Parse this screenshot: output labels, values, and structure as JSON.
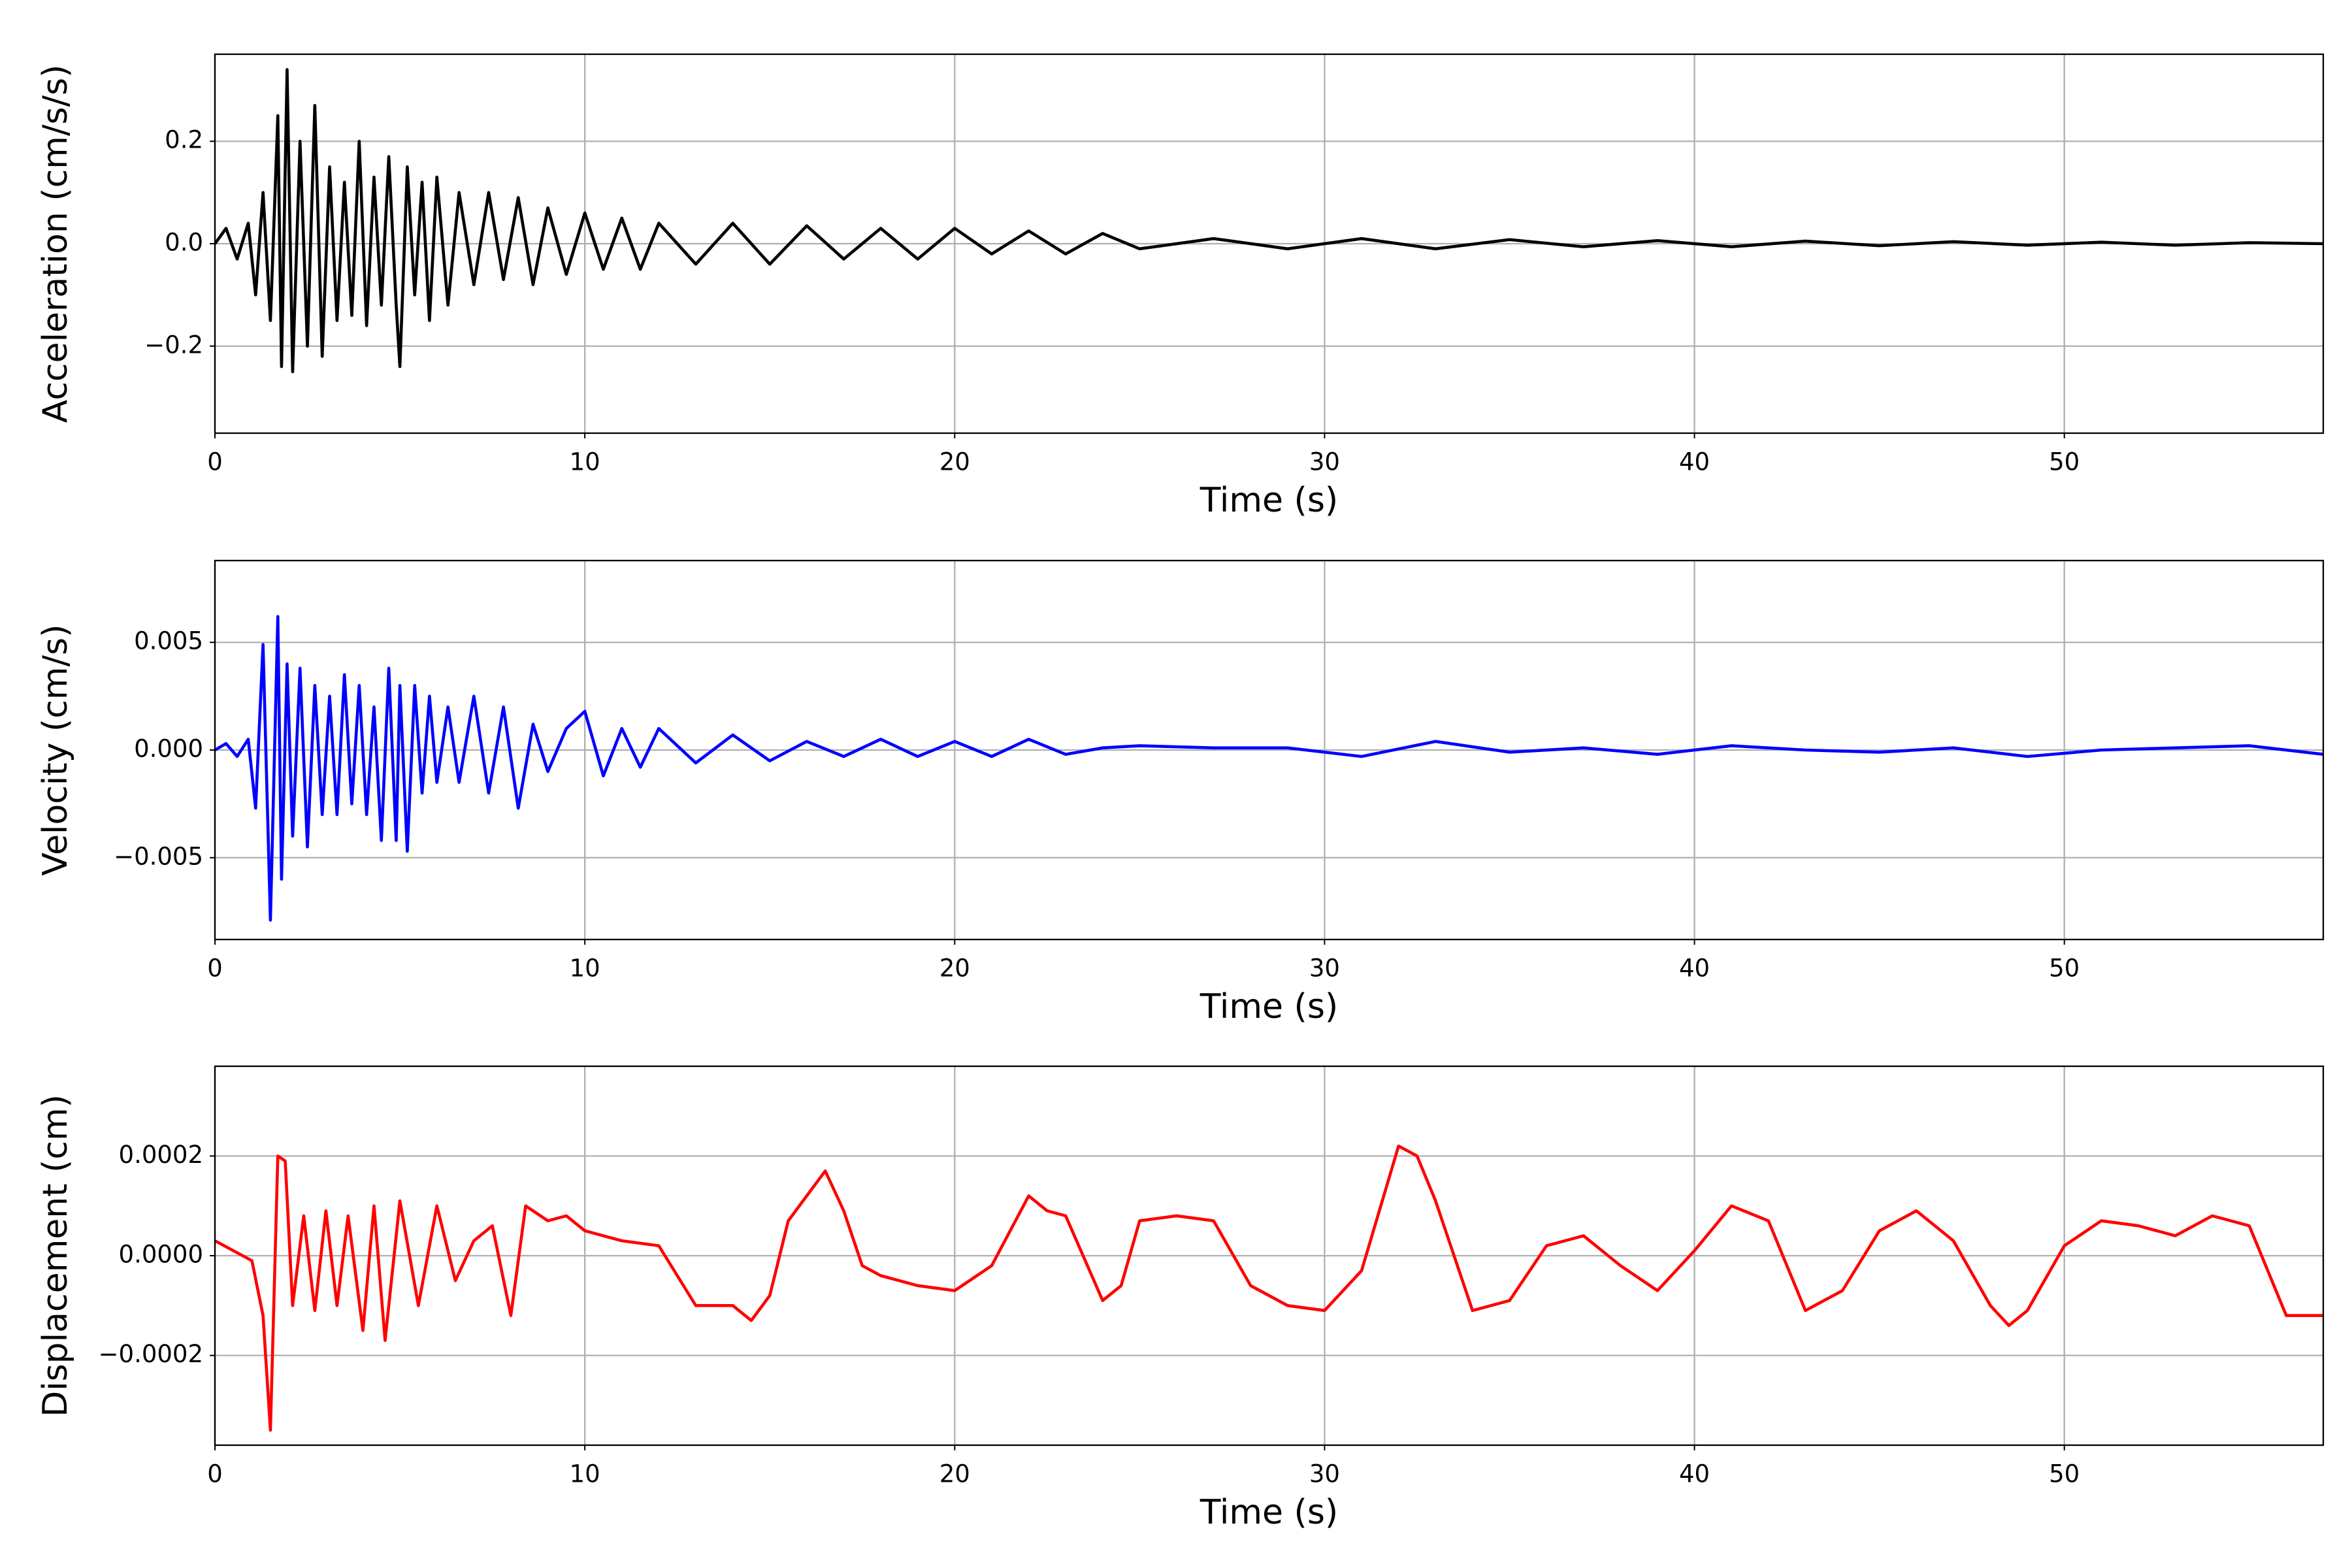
{
  "chart_data": [
    {
      "type": "line",
      "xlabel": "Time (s)",
      "ylabel": "Acceleration (cm/s/s)",
      "color": "#000000",
      "grid": true,
      "xlim": [
        0,
        57
      ],
      "ylim": [
        -0.37,
        0.37
      ],
      "xticks": [
        0,
        10,
        20,
        30,
        40,
        50
      ],
      "yticks": [
        {
          "value": -0.2,
          "label": "−0.2"
        },
        {
          "value": 0,
          "label": "0.0"
        },
        0.2
      ],
      "x": [
        0,
        0.3,
        0.6,
        0.9,
        1.1,
        1.3,
        1.5,
        1.7,
        1.8,
        1.95,
        2.1,
        2.3,
        2.5,
        2.7,
        2.9,
        3.1,
        3.3,
        3.5,
        3.7,
        3.9,
        4.1,
        4.3,
        4.5,
        4.7,
        4.9,
        5.0,
        5.2,
        5.4,
        5.6,
        5.8,
        6.0,
        6.3,
        6.6,
        7,
        7.4,
        7.8,
        8.2,
        8.6,
        9,
        9.5,
        10,
        10.5,
        11,
        11.5,
        12,
        13,
        14,
        15,
        16,
        17,
        18,
        19,
        20,
        21,
        22,
        23,
        24,
        25,
        27,
        29,
        31,
        33,
        35,
        37,
        39,
        41,
        43,
        45,
        47,
        49,
        51,
        53,
        55,
        57
      ],
      "values": [
        0,
        0.03,
        -0.03,
        0.04,
        -0.1,
        0.1,
        -0.15,
        0.25,
        -0.24,
        0.34,
        -0.25,
        0.2,
        -0.2,
        0.27,
        -0.22,
        0.15,
        -0.15,
        0.12,
        -0.14,
        0.2,
        -0.16,
        0.13,
        -0.12,
        0.17,
        -0.12,
        -0.24,
        0.15,
        -0.1,
        0.12,
        -0.15,
        0.13,
        -0.12,
        0.1,
        -0.08,
        0.1,
        -0.07,
        0.09,
        -0.08,
        0.07,
        -0.06,
        0.06,
        -0.05,
        0.05,
        -0.05,
        0.04,
        -0.04,
        0.04,
        -0.04,
        0.035,
        -0.03,
        0.03,
        -0.03,
        0.03,
        -0.02,
        0.025,
        -0.02,
        0.02,
        -0.01,
        0.01,
        -0.01,
        0.01,
        -0.01,
        0.008,
        -0.006,
        0.006,
        -0.006,
        0.005,
        -0.004,
        0.004,
        -0.003,
        0.003,
        -0.003,
        0.002,
        0
      ]
    },
    {
      "type": "line",
      "xlabel": "Time (s)",
      "ylabel": "Velocity (cm/s)",
      "color": "#0000ff",
      "grid": true,
      "xlim": [
        0,
        57
      ],
      "ylim": [
        -0.0088,
        0.0088
      ],
      "xticks": [
        0,
        10,
        20,
        30,
        40,
        50
      ],
      "yticks": [
        {
          "value": -0.005,
          "label": "−0.005"
        },
        {
          "value": 0,
          "label": "0.000"
        },
        {
          "value": 0.005,
          "label": "0.005"
        }
      ],
      "x": [
        0,
        0.3,
        0.6,
        0.9,
        1.1,
        1.3,
        1.5,
        1.7,
        1.8,
        1.95,
        2.1,
        2.3,
        2.5,
        2.7,
        2.9,
        3.1,
        3.3,
        3.5,
        3.7,
        3.9,
        4.1,
        4.3,
        4.5,
        4.7,
        4.9,
        5.0,
        5.2,
        5.4,
        5.6,
        5.8,
        6.0,
        6.3,
        6.6,
        7,
        7.4,
        7.8,
        8.2,
        8.6,
        9,
        9.5,
        10,
        10.5,
        11,
        11.5,
        12,
        13,
        14,
        15,
        16,
        17,
        18,
        19,
        20,
        21,
        22,
        23,
        24,
        25,
        27,
        29,
        31,
        33,
        35,
        37,
        39,
        41,
        43,
        45,
        47,
        49,
        51,
        53,
        55,
        57
      ],
      "values": [
        0,
        0.0003,
        -0.0003,
        0.0005,
        -0.0027,
        0.0049,
        -0.0079,
        0.0062,
        -0.006,
        0.004,
        -0.004,
        0.0038,
        -0.0045,
        0.003,
        -0.003,
        0.0025,
        -0.003,
        0.0035,
        -0.0025,
        0.003,
        -0.003,
        0.002,
        -0.0042,
        0.0038,
        -0.0042,
        0.003,
        -0.0047,
        0.003,
        -0.002,
        0.0025,
        -0.0015,
        0.002,
        -0.0015,
        0.0025,
        -0.002,
        0.002,
        -0.0027,
        0.0012,
        -0.001,
        0.001,
        0.0018,
        -0.0012,
        0.001,
        -0.0008,
        0.001,
        -0.0006,
        0.0007,
        -0.0005,
        0.0004,
        -0.0003,
        0.0005,
        -0.0003,
        0.0004,
        -0.0003,
        0.0005,
        -0.0002,
        0.0001,
        0.0002,
        0.0001,
        0.0001,
        -0.0003,
        0.0004,
        -0.0001,
        0.0001,
        -0.0002,
        0.0002,
        0,
        -0.0001,
        0.0001,
        -0.0003,
        0,
        0.0001,
        0.0002,
        -0.0002
      ]
    },
    {
      "type": "line",
      "xlabel": "Time (s)",
      "ylabel": "Displacement (cm)",
      "color": "#ff0000",
      "grid": true,
      "xlim": [
        0,
        57
      ],
      "ylim": [
        -0.00038,
        0.00038
      ],
      "xticks": [
        0,
        10,
        20,
        30,
        40,
        50
      ],
      "yticks": [
        {
          "value": -0.0002,
          "label": "−0.0002"
        },
        {
          "value": 0,
          "label": "0.0000"
        },
        0.0002
      ],
      "x": [
        0,
        0.5,
        1.0,
        1.3,
        1.5,
        1.7,
        1.9,
        2.1,
        2.4,
        2.7,
        3,
        3.3,
        3.6,
        4,
        4.3,
        4.6,
        5,
        5.5,
        6,
        6.5,
        7,
        7.5,
        8,
        8.4,
        9,
        9.5,
        10,
        11,
        12,
        13,
        14,
        14.5,
        15,
        15.5,
        16,
        16.5,
        17,
        17.5,
        18,
        19,
        20,
        21,
        22,
        22.5,
        23,
        24,
        24.5,
        25,
        26,
        27,
        28,
        29,
        30,
        31,
        32,
        32.5,
        33,
        34,
        35,
        36,
        37,
        38,
        39,
        40,
        41,
        42,
        43,
        44,
        45,
        46,
        47,
        48,
        48.5,
        49,
        50,
        51,
        52,
        53,
        54,
        55,
        56,
        57
      ],
      "values": [
        3e-05,
        1e-05,
        -1e-05,
        -0.00012,
        -0.00035,
        0.0002,
        0.00019,
        -0.0001,
        8e-05,
        -0.00011,
        9e-05,
        -0.0001,
        8e-05,
        -0.00015,
        0.0001,
        -0.00017,
        0.00011,
        -0.0001,
        0.0001,
        -5e-05,
        3e-05,
        6e-05,
        -0.00012,
        0.0001,
        7e-05,
        8e-05,
        5e-05,
        3e-05,
        2e-05,
        -0.0001,
        -0.0001,
        -0.00013,
        -8e-05,
        7e-05,
        0.00012,
        0.00017,
        9e-05,
        -2e-05,
        -4e-05,
        -6e-05,
        -7e-05,
        -2e-05,
        0.00012,
        9e-05,
        8e-05,
        -9e-05,
        -6e-05,
        7e-05,
        8e-05,
        7e-05,
        -6e-05,
        -0.0001,
        -0.00011,
        -3e-05,
        0.00022,
        0.0002,
        0.00011,
        -0.00011,
        -9e-05,
        2e-05,
        4e-05,
        -2e-05,
        -7e-05,
        1e-05,
        0.0001,
        7e-05,
        -0.00011,
        -7e-05,
        5e-05,
        9e-05,
        3e-05,
        -0.0001,
        -0.00014,
        -0.00011,
        2e-05,
        7e-05,
        6e-05,
        4e-05,
        8e-05,
        6e-05,
        -0.00012,
        -0.00012
      ]
    }
  ]
}
